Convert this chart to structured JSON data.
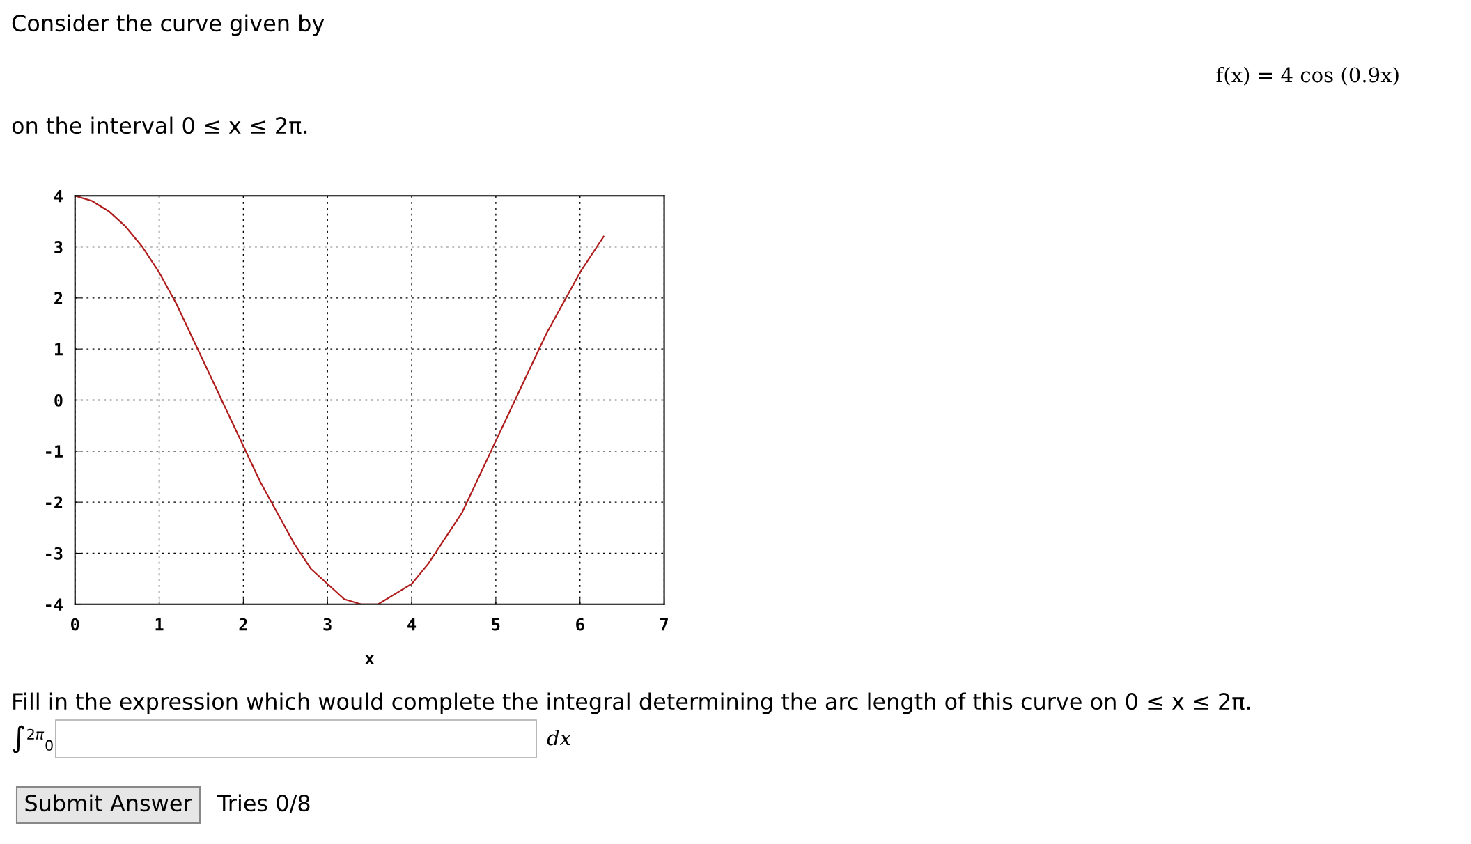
{
  "chart_data": {
    "type": "line",
    "title": "Consider the curve given by",
    "xlabel": "x",
    "x": [
      0,
      0.2,
      0.4,
      0.6,
      0.8,
      1.0,
      1.2,
      1.4,
      1.6,
      1.8,
      2.0,
      2.2,
      2.4,
      2.6,
      2.8,
      3.0,
      3.2,
      3.4,
      3.6,
      3.8,
      4.0,
      4.2,
      4.4,
      4.6,
      4.8,
      5.0,
      5.2,
      5.4,
      5.6,
      5.8,
      6.0,
      6.2,
      6.28
    ],
    "series": [
      {
        "color": "#b01c1c",
        "values": [
          4.0,
          3.9,
          3.7,
          3.4,
          3.0,
          2.5,
          1.9,
          1.2,
          0.5,
          -0.2,
          -0.9,
          -1.6,
          -2.2,
          -2.8,
          -3.3,
          -3.6,
          -3.9,
          -4.0,
          -4.0,
          -3.8,
          -3.6,
          -3.2,
          -2.7,
          -2.2,
          -1.5,
          -0.8,
          -0.1,
          0.6,
          1.3,
          1.9,
          2.5,
          3.0,
          3.2
        ]
      }
    ],
    "xlim": [
      0,
      7
    ],
    "ylim": [
      -4,
      4
    ],
    "xticks": [
      0,
      1,
      2,
      3,
      4,
      5,
      6,
      7
    ],
    "yticks": [
      -4,
      -3,
      -2,
      -1,
      0,
      1,
      2,
      3,
      4
    ],
    "grid": true,
    "line_style": "solid",
    "marker": "none",
    "legend": false,
    "annotations": [
      "f(x) = 4 cos (0.9x)",
      "on the interval 0 ≤ x ≤ 2π.",
      "Fill in the expression which would complete the integral determining the arc length of this curve on 0 ≤ x ≤ 2π.",
      "∫$^{2π}$$_{0}$",
      "dx",
      "Submit Answer",
      "Tries 0/8"
    ]
  }
}
